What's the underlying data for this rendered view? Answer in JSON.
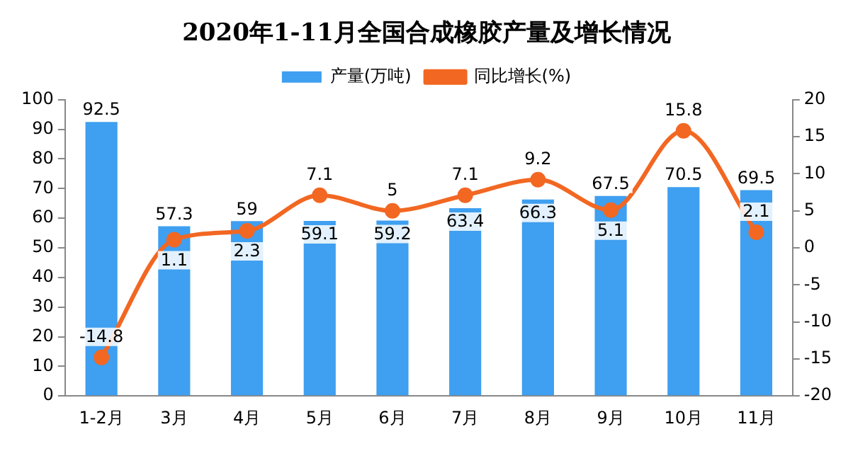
{
  "chart_data": {
    "type": "bar",
    "title": "2020年1-11月全国合成橡胶产量及增长情况",
    "categories": [
      "1-2月",
      "3月",
      "4月",
      "5月",
      "6月",
      "7月",
      "8月",
      "9月",
      "10月",
      "11月"
    ],
    "series": [
      {
        "name": "产量(万吨)",
        "color": "#3f9ff0",
        "values": [
          92.5,
          57.3,
          59,
          59.1,
          59.2,
          63.4,
          66.3,
          67.5,
          70.5,
          69.5
        ]
      },
      {
        "name": "同比增长(%)",
        "type": "line",
        "axis": "y2",
        "color": "#f26722",
        "marker": "circle",
        "values": [
          -14.8,
          1.1,
          2.3,
          7.1,
          5,
          7.1,
          9.2,
          5.1,
          15.8,
          2.1
        ]
      }
    ],
    "ylim": [
      0,
      100
    ],
    "yticks": [
      0,
      10,
      20,
      30,
      40,
      50,
      60,
      70,
      80,
      90,
      100
    ],
    "y2lim": [
      -20,
      20
    ],
    "y2ticks": [
      -20,
      -15,
      -10,
      -5,
      0,
      5,
      10,
      15,
      20
    ],
    "grid": false,
    "legend": "top",
    "data_labels": true
  }
}
